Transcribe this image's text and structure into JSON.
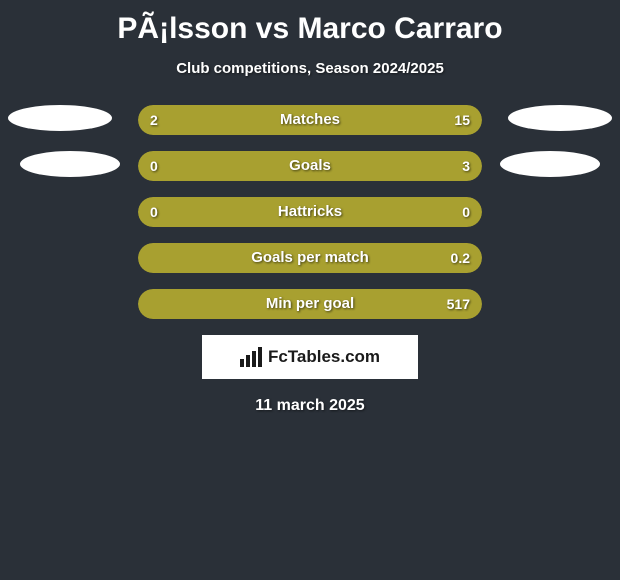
{
  "title": "PÃ¡lsson vs Marco Carraro",
  "subtitle": "Club competitions, Season 2024/2025",
  "date_text": "11 march 2025",
  "logo_text": "FcTables.com",
  "colors": {
    "background": "#2a3038",
    "left_player": "#a8a030",
    "right_player": "#a8a030",
    "neutral": "#2a3038",
    "text": "#ffffff",
    "ellipse": "#ffffff"
  },
  "stats": [
    {
      "label": "Matches",
      "left_value": "2",
      "right_value": "15",
      "left_pct": 12,
      "right_pct": 88,
      "left_color": "#a8a030",
      "right_color": "#a8a030",
      "show_left_val": true,
      "show_right_val": true
    },
    {
      "label": "Goals",
      "left_value": "0",
      "right_value": "3",
      "left_pct": 0,
      "right_pct": 100,
      "left_color": "#a8a030",
      "right_color": "#a8a030",
      "show_left_val": true,
      "show_right_val": true
    },
    {
      "label": "Hattricks",
      "left_value": "0",
      "right_value": "0",
      "left_pct": 100,
      "right_pct": 0,
      "left_color": "#a8a030",
      "right_color": "#a8a030",
      "show_left_val": true,
      "show_right_val": true
    },
    {
      "label": "Goals per match",
      "left_value": "",
      "right_value": "0.2",
      "left_pct": 0,
      "right_pct": 100,
      "left_color": "#a8a030",
      "right_color": "#a8a030",
      "show_left_val": false,
      "show_right_val": true
    },
    {
      "label": "Min per goal",
      "left_value": "",
      "right_value": "517",
      "left_pct": 0,
      "right_pct": 100,
      "left_color": "#a8a030",
      "right_color": "#a8a030",
      "show_left_val": false,
      "show_right_val": true
    }
  ]
}
